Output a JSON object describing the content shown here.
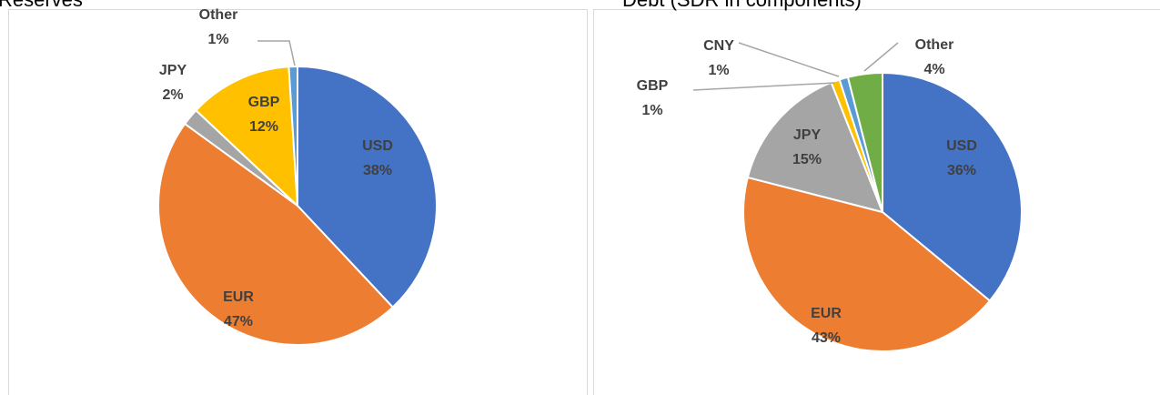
{
  "chart_data": [
    {
      "type": "pie",
      "title": "Reserves",
      "categories": [
        "USD",
        "EUR",
        "JPY",
        "GBP",
        "Other"
      ],
      "values": [
        38,
        47,
        2,
        12,
        1
      ],
      "value_labels": [
        "38%",
        "47%",
        "2%",
        "12%",
        "1%"
      ],
      "colors": [
        "#4472c4",
        "#ed7d31",
        "#a5a5a5",
        "#ffc000",
        "#5b9bd5"
      ]
    },
    {
      "type": "pie",
      "title": "Debt (SDR in components)",
      "categories": [
        "USD",
        "EUR",
        "JPY",
        "GBP",
        "CNY",
        "Other"
      ],
      "values": [
        36,
        43,
        15,
        1,
        1,
        4
      ],
      "value_labels": [
        "36%",
        "43%",
        "15%",
        "1%",
        "1%",
        "4%"
      ],
      "colors": [
        "#4472c4",
        "#ed7d31",
        "#a5a5a5",
        "#ffc000",
        "#5b9bd5",
        "#70ad47"
      ]
    }
  ]
}
